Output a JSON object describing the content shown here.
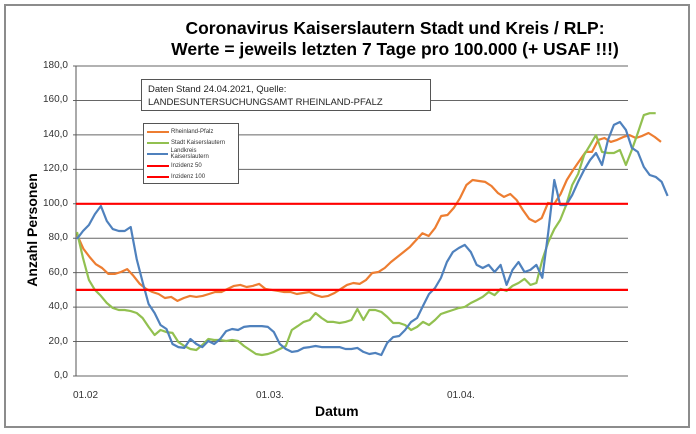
{
  "chart_data": {
    "type": "line",
    "title": "Coronavirus Kaiserslautern Stadt und Kreis / RLP:",
    "subtitle": "Werte = jeweils letzten 7 Tage pro 100.000 (+ USAF !!!)",
    "xlabel": "Datum",
    "ylabel": "Anzahl Personen",
    "ylim": [
      0,
      180
    ],
    "yticks": [
      "0,0",
      "20,0",
      "40,0",
      "60,0",
      "80,0",
      "100,0",
      "120,0",
      "140,0",
      "160,0",
      "180,0"
    ],
    "xticks": [
      "01.02",
      "01.03.",
      "01.04."
    ],
    "grid": true,
    "legend_position": "upper-left-inset",
    "annotation": "Daten Stand 24.04.2021, Quelle: LANDESUNTERSUCHUNGSAMT RHEINLAND-PFALZ",
    "series": [
      {
        "name": "Rheinland-Pfalz",
        "color": "#ED7D31",
        "values": [
          82.1,
          74,
          69.1,
          64.9,
          62.7,
          59.3,
          59.3,
          60.4,
          62.1,
          58.1,
          53.5,
          50.6,
          48.8,
          47.6,
          45.3,
          45.9,
          43.6,
          45.3,
          46.5,
          45.9,
          46.5,
          47.6,
          48.8,
          48.8,
          50.6,
          52.3,
          52.9,
          51.7,
          52.3,
          53.5,
          50.6,
          50,
          49.4,
          48.8,
          48.8,
          47.6,
          48.2,
          48.8,
          47,
          45.9,
          46.5,
          48.2,
          50.6,
          52.9,
          54.0,
          53.5,
          55.7,
          59.8,
          60.4,
          62.7,
          66.2,
          69.1,
          72,
          74.9,
          78.9,
          82.9,
          81.3,
          85.9,
          92.9,
          93.5,
          97.6,
          103.4,
          110.9,
          113.8,
          113.2,
          112.7,
          110.3,
          106.3,
          104,
          105.7,
          102.2,
          96.4,
          91.2,
          89.4,
          91.7,
          100.5,
          99.9,
          105.7,
          113.8,
          119.6,
          124.9,
          130.1,
          130.1,
          137.1,
          138.2,
          135.9,
          137.1,
          138.8,
          139.9,
          138.2,
          139.4,
          141.1,
          138.8,
          135.9
        ]
      },
      {
        "name": "Stadt Kaiserslautern",
        "color": "#92C050",
        "values": [
          83.6,
          68.5,
          55.8,
          50,
          46.5,
          42.4,
          39.5,
          38.3,
          38.3,
          37.7,
          36.6,
          33.7,
          28.5,
          23.8,
          26.7,
          25.5,
          25,
          19.7,
          17.4,
          15.7,
          15.1,
          18,
          21.5,
          20.9,
          20.9,
          20.3,
          20.9,
          20.3,
          17.4,
          15.1,
          12.8,
          12.2,
          12.8,
          14,
          15.7,
          17.4,
          26.7,
          29,
          31.4,
          32.5,
          36.6,
          33.7,
          31.4,
          31.4,
          30.8,
          31.4,
          32.5,
          38.9,
          32.5,
          38.3,
          38.3,
          37.2,
          34.3,
          30.8,
          30.8,
          29.6,
          26.7,
          28.5,
          31.4,
          29.6,
          32.5,
          36,
          37.2,
          38.3,
          39.5,
          40.1,
          42.4,
          44.1,
          45.9,
          48.8,
          47,
          50.6,
          49.4,
          52.3,
          54,
          56.4,
          52.9,
          54,
          67.4,
          77.8,
          85.3,
          90.6,
          99.3,
          110.9,
          117.3,
          128.3,
          134.1,
          139.9,
          130.1,
          129.5,
          129.5,
          131.2,
          122.5,
          131.2,
          141.1,
          151.5,
          152.6,
          152.6
        ]
      },
      {
        "name": "Landkreis Kaiserslautern",
        "color": "#4F81BD",
        "values": [
          79.6,
          84.2,
          87.7,
          94,
          98.7,
          90,
          85.3,
          84.2,
          84.2,
          86.5,
          67.9,
          54.6,
          41.8,
          36.6,
          29.6,
          27.3,
          18.6,
          16.8,
          16.3,
          21.5,
          18.6,
          16.8,
          20.3,
          18.6,
          21.5,
          26.1,
          27.3,
          26.7,
          28.5,
          29,
          29,
          29,
          28.5,
          25.5,
          18.6,
          15.7,
          14,
          14.5,
          16.3,
          16.8,
          17.4,
          16.8,
          16.8,
          16.8,
          16.8,
          15.7,
          15.7,
          16.3,
          14,
          12.8,
          13.4,
          12.2,
          19.2,
          22.6,
          23.2,
          26.7,
          31.4,
          33.7,
          40.7,
          47.6,
          51.1,
          56.9,
          66.2,
          72,
          74.3,
          76.1,
          72,
          64.5,
          62.7,
          64.5,
          60.4,
          64.5,
          52.9,
          61.6,
          66.2,
          60.4,
          61.6,
          64.5,
          57,
          83.6,
          113.8,
          99.3,
          99.3,
          105.1,
          112.7,
          119.6,
          125.4,
          129.5,
          122.5,
          137.1,
          145.8,
          147.5,
          142.9,
          132.5,
          130.1,
          121.4,
          116.7,
          115.6,
          112.7,
          104.6
        ]
      },
      {
        "name": "Inzidenz 50",
        "color": "#FF0000",
        "values": [
          50,
          50
        ]
      },
      {
        "name": "Inzidenz 100",
        "color": "#FF0000",
        "values": [
          100,
          100
        ]
      }
    ]
  }
}
